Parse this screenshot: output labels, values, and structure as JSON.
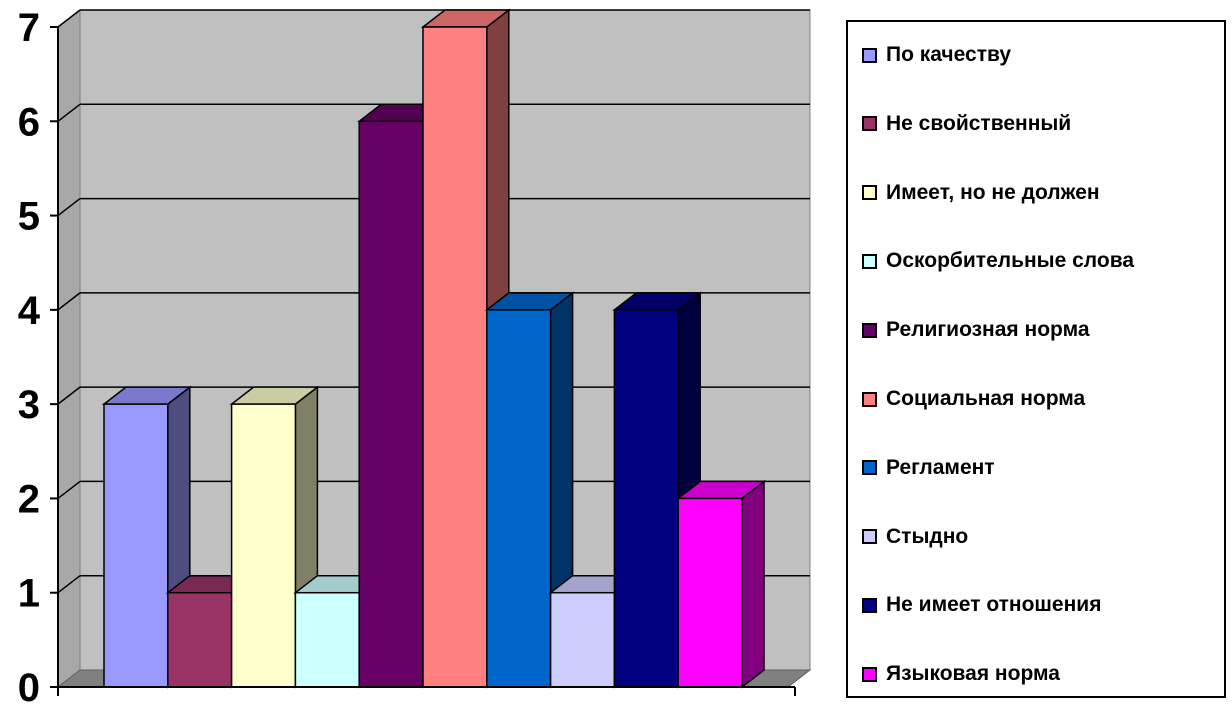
{
  "chart_data": {
    "type": "bar",
    "title": "",
    "xlabel": "",
    "ylabel": "",
    "ylim": [
      0,
      7
    ],
    "y_ticks": [
      "0",
      "1",
      "2",
      "3",
      "4",
      "5",
      "6",
      "7"
    ],
    "grid": true,
    "legend_position": "right",
    "style": "3d",
    "series": [
      {
        "name": "По качеству",
        "value": 3,
        "color": "#9999FF"
      },
      {
        "name": "Не свойственный",
        "value": 1,
        "color": "#993366"
      },
      {
        "name": "Имеет, но не должен",
        "value": 3,
        "color": "#FFFFCC"
      },
      {
        "name": "Оскорбительные слова",
        "value": 1,
        "color": "#CCFFFF"
      },
      {
        "name": "Религиозная норма",
        "value": 6,
        "color": "#660066"
      },
      {
        "name": "Социальная норма",
        "value": 7,
        "color": "#FF8080"
      },
      {
        "name": "Регламент",
        "value": 4,
        "color": "#0066CC"
      },
      {
        "name": "Стыдно",
        "value": 1,
        "color": "#CCCCFF"
      },
      {
        "name": "Не имеет отношения",
        "value": 4,
        "color": "#000080"
      },
      {
        "name": "Языковая норма",
        "value": 2,
        "color": "#FF00FF"
      }
    ]
  }
}
